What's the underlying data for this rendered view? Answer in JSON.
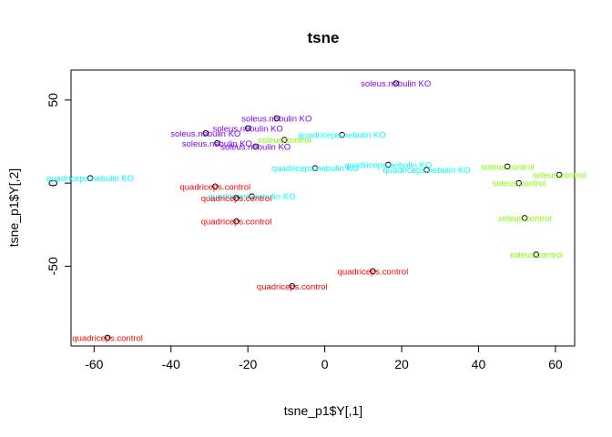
{
  "chart_data": {
    "type": "scatter",
    "title": "tsne",
    "xlabel": "tsne_p1$Y[,1]",
    "ylabel": "tsne_p1$Y[,2]",
    "xlim": [
      -66,
      65
    ],
    "ylim": [
      -98,
      68
    ],
    "xticks": [
      -60,
      -40,
      -20,
      0,
      20,
      40,
      60
    ],
    "yticks": [
      -50,
      0,
      50
    ],
    "grid": false,
    "legend": "none",
    "colors": {
      "soleus.nebulin KO": "#7F00FF",
      "quadriceps.nebulin KO": "#00FFFF",
      "soleus.control": "#80FF00",
      "quadriceps.control": "#FF0000"
    },
    "points": [
      {
        "x": 18.5,
        "y": 60,
        "label": "soleus.nebulin KO"
      },
      {
        "x": -12.5,
        "y": 39,
        "label": "soleus.nebulin KO"
      },
      {
        "x": -20,
        "y": 33,
        "label": "soleus.nebulin KO"
      },
      {
        "x": -31,
        "y": 30,
        "label": "soleus.nebulin KO"
      },
      {
        "x": -28,
        "y": 24,
        "label": "soleus.nebulin KO"
      },
      {
        "x": -18,
        "y": 22,
        "label": "soleus.nebulin KO"
      },
      {
        "x": 4.5,
        "y": 29,
        "label": "quadriceps.nebulin KO"
      },
      {
        "x": -61,
        "y": 3,
        "label": "quadriceps.nebulin KO"
      },
      {
        "x": -2.5,
        "y": 9,
        "label": "quadriceps.nebulin KO"
      },
      {
        "x": 16.5,
        "y": 11,
        "label": "quadriceps.nebulin KO"
      },
      {
        "x": 26.5,
        "y": 8,
        "label": "quadriceps.nebulin KO"
      },
      {
        "x": -19,
        "y": -8,
        "label": "quadriceps.nebulin KO"
      },
      {
        "x": -10.5,
        "y": 26,
        "label": "soleus.control"
      },
      {
        "x": 47.5,
        "y": 10,
        "label": "soleus.control"
      },
      {
        "x": 61,
        "y": 5,
        "label": "soleus.control"
      },
      {
        "x": 50.5,
        "y": 0,
        "label": "soleus.control"
      },
      {
        "x": 52,
        "y": -21,
        "label": "soleus.control"
      },
      {
        "x": 55,
        "y": -43,
        "label": "soleus.control"
      },
      {
        "x": -28.5,
        "y": -2,
        "label": "quadriceps.control"
      },
      {
        "x": -23,
        "y": -9,
        "label": "quadriceps.control"
      },
      {
        "x": -23,
        "y": -23,
        "label": "quadriceps.control"
      },
      {
        "x": 12.5,
        "y": -53,
        "label": "quadriceps.control"
      },
      {
        "x": -8.5,
        "y": -62,
        "label": "quadriceps.control"
      },
      {
        "x": -56.5,
        "y": -93,
        "label": "quadriceps.control"
      }
    ]
  }
}
